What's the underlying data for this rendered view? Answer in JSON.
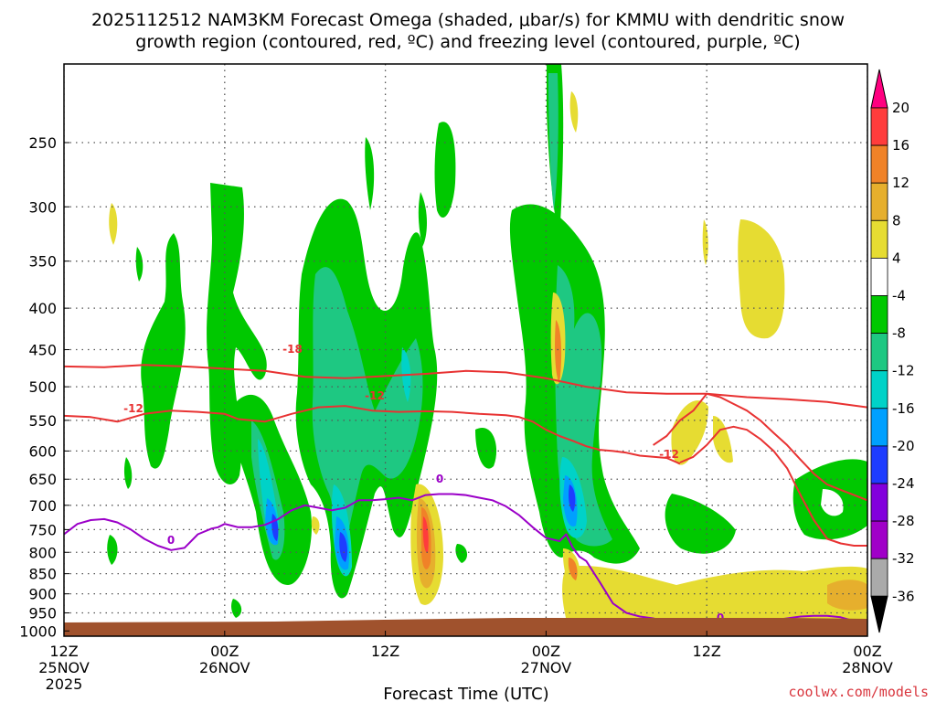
{
  "chart_data": {
    "type": "heatmap",
    "title": "2025112512 NAM3KM Forecast Omega (shaded, μbar/s) for KMMU with dendritic snow",
    "subtitle": "growth region (contoured, red, ºC) and freezing level (contoured, purple, ºC)",
    "xlabel": "Forecast Time (UTC)",
    "ylabel": "",
    "credit": "coolwx.com/models",
    "x_ticks": [
      {
        "hour": 0,
        "label": "12Z",
        "date": "25NOV",
        "year": "2025"
      },
      {
        "hour": 12,
        "label": "00Z",
        "date": "26NOV",
        "year": ""
      },
      {
        "hour": 24,
        "label": "12Z",
        "date": "",
        "year": ""
      },
      {
        "hour": 36,
        "label": "00Z",
        "date": "27NOV",
        "year": ""
      },
      {
        "hour": 48,
        "label": "12Z",
        "date": "",
        "year": ""
      },
      {
        "hour": 60,
        "label": "00Z",
        "date": "28NOV",
        "year": ""
      }
    ],
    "xlim": [
      0,
      60
    ],
    "y_ticks": [
      "250",
      "300",
      "350",
      "400",
      "450",
      "500",
      "550",
      "600",
      "650",
      "700",
      "750",
      "800",
      "850",
      "900",
      "950",
      "1000"
    ],
    "ylim": [
      200,
      1015
    ],
    "colorbar": {
      "labels": [
        "20",
        "16",
        "12",
        "8",
        "4",
        "-4",
        "-8",
        "-12",
        "-16",
        "-20",
        "-24",
        "-28",
        "-32",
        "-36"
      ],
      "colors": [
        "#ff3c3c",
        "#f08228",
        "#e6af2d",
        "#e6dc32",
        "#ffffff",
        "#00c800",
        "#1ec882",
        "#00d2c8",
        "#00a0ff",
        "#1e3cff",
        "#8200dc",
        "#a000c8",
        "#aaaaaa"
      ],
      "top_color": "#ff0080",
      "bottom_color": "#000000"
    },
    "contour_labels": {
      "dgz_upper": "-18",
      "dgz_lower_a": "-12",
      "dgz_lower_b": "-12",
      "dgz_lower_c": "-12",
      "freezing_a": "0",
      "freezing_b": "0",
      "freezing_c": "0"
    },
    "contours": {
      "dgz_upper": {
        "name": "-18 ºC",
        "color": "#e83232",
        "x": [
          0,
          3,
          6,
          9,
          12,
          15,
          18,
          21,
          24,
          27,
          30,
          33,
          36,
          39,
          42,
          45,
          48,
          51,
          54,
          57,
          60
        ],
        "p": [
          472,
          473,
          470,
          472,
          475,
          478,
          486,
          488,
          485,
          482,
          478,
          480,
          488,
          500,
          508,
          510,
          510,
          515,
          518,
          522,
          530
        ]
      },
      "dgz_lower_a": {
        "name": "-12 ºC",
        "color": "#e83232",
        "x": [
          0,
          2,
          4,
          6,
          8,
          10,
          12,
          13,
          15,
          17,
          19,
          21,
          23,
          25,
          27,
          29,
          31,
          33,
          34,
          35,
          36,
          37,
          38,
          39,
          40,
          41,
          42,
          43,
          44,
          45,
          46
        ],
        "p": [
          543,
          545,
          552,
          540,
          535,
          537,
          540,
          548,
          552,
          540,
          530,
          528,
          535,
          537,
          536,
          537,
          540,
          542,
          545,
          552,
          565,
          575,
          583,
          592,
          598,
          600,
          603,
          608,
          610,
          612,
          622
        ]
      },
      "dgz_lower_b": {
        "name": "-12 ºC",
        "color": "#e83232",
        "x": [
          44,
          45,
          46,
          47,
          48,
          49,
          50,
          51,
          52,
          53,
          54,
          55,
          56,
          57,
          58,
          59,
          60
        ],
        "p": [
          590,
          575,
          550,
          535,
          510,
          515,
          525,
          535,
          550,
          570,
          590,
          615,
          640,
          660,
          670,
          680,
          690
        ]
      },
      "dgz_lower_c": {
        "name": "-12 ºC",
        "color": "#e83232",
        "x": [
          46,
          47,
          48,
          49,
          50,
          51,
          52,
          53,
          54,
          55,
          56,
          57,
          58,
          59,
          60
        ],
        "p": [
          620,
          610,
          590,
          565,
          560,
          565,
          580,
          600,
          630,
          680,
          730,
          770,
          780,
          785,
          785
        ]
      },
      "freezing": {
        "name": "0 ºC",
        "color": "#9b00c8",
        "x": [
          0,
          1,
          2,
          3,
          4,
          5,
          6,
          7,
          8,
          9,
          10,
          11,
          11.5,
          12,
          13,
          14,
          15,
          16,
          17,
          18,
          19,
          20,
          21,
          22,
          23,
          24,
          25,
          26,
          27,
          28,
          29,
          30,
          31,
          32,
          33,
          34,
          35,
          36,
          37,
          37.5,
          38,
          38.5,
          39,
          40,
          41,
          42,
          43,
          44,
          45,
          46,
          47,
          48,
          49,
          50,
          51,
          52,
          53,
          54,
          55,
          56,
          57,
          58,
          59,
          60
        ],
        "p": [
          760,
          738,
          730,
          728,
          735,
          750,
          770,
          785,
          795,
          790,
          760,
          748,
          745,
          738,
          745,
          745,
          740,
          728,
          710,
          700,
          705,
          710,
          705,
          690,
          690,
          688,
          685,
          690,
          680,
          678,
          678,
          680,
          685,
          690,
          702,
          720,
          745,
          768,
          775,
          760,
          790,
          810,
          820,
          870,
          925,
          950,
          960,
          965,
          975,
          982,
          990,
          995,
          995,
          990,
          985,
          975,
          970,
          965,
          960,
          958,
          958,
          962,
          972,
          985
        ]
      }
    }
  }
}
